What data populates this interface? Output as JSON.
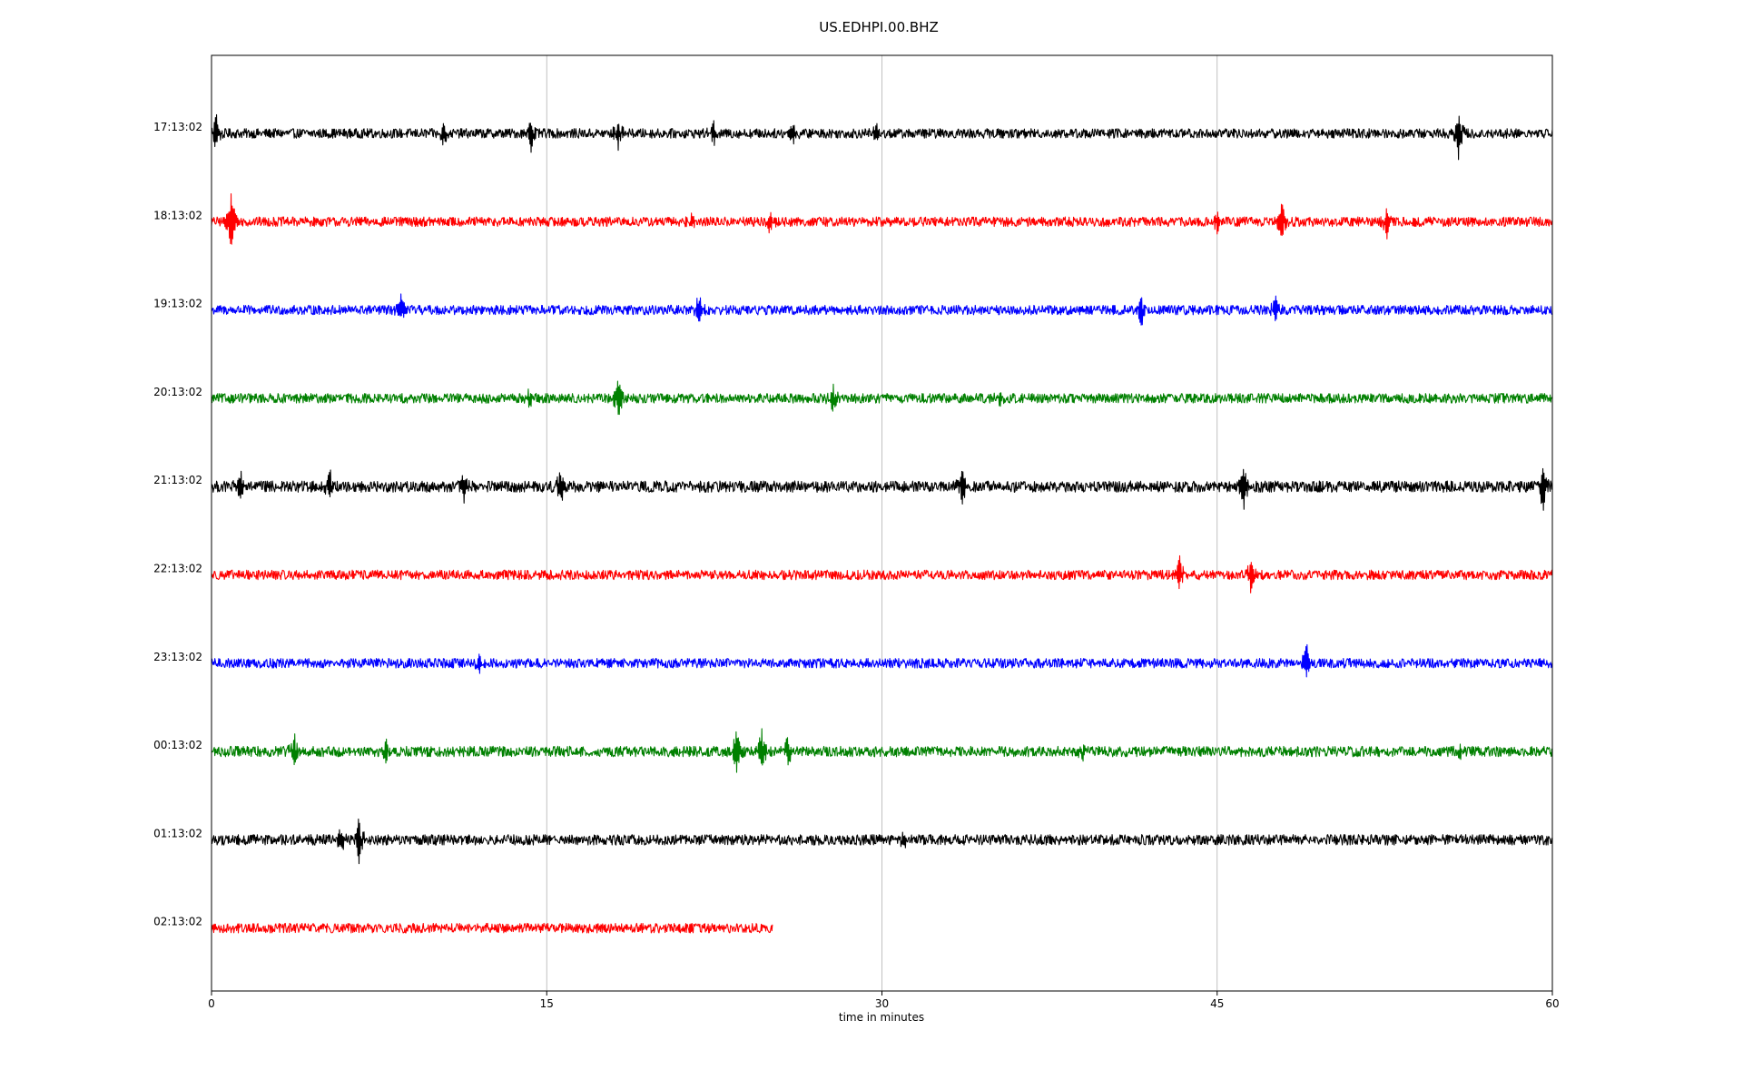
{
  "chart_data": {
    "type": "line",
    "title": "US.EDHPI.00.BHZ",
    "xlabel": "time in minutes",
    "ylabel": "",
    "xlim": [
      0,
      60
    ],
    "xticks": [
      0,
      15,
      30,
      45,
      60
    ],
    "xtick_labels": [
      "0",
      "15",
      "30",
      "45",
      "60"
    ],
    "grid": "vertical lines at x ticks",
    "series": [
      {
        "name": "17:13:02",
        "color": "#000000",
        "end_minute": 60,
        "noise": 0.11,
        "events": [
          {
            "t": 0.2,
            "amp": 0.4
          },
          {
            "t": 10.4,
            "amp": 0.25
          },
          {
            "t": 14.3,
            "amp": 0.35
          },
          {
            "t": 18.2,
            "amp": 0.35
          },
          {
            "t": 22.5,
            "amp": 0.3
          },
          {
            "t": 26.0,
            "amp": 0.25
          },
          {
            "t": 29.7,
            "amp": 0.25
          },
          {
            "t": 55.8,
            "amp": 0.55
          }
        ]
      },
      {
        "name": "18:13:02",
        "color": "#ff0000",
        "end_minute": 60,
        "noise": 0.11,
        "events": [
          {
            "t": 0.9,
            "amp": 0.65
          },
          {
            "t": 21.5,
            "amp": 0.2
          },
          {
            "t": 25.0,
            "amp": 0.22
          },
          {
            "t": 45.0,
            "amp": 0.25
          },
          {
            "t": 47.9,
            "amp": 0.4
          },
          {
            "t": 52.6,
            "amp": 0.35
          }
        ]
      },
      {
        "name": "19:13:02",
        "color": "#0000ff",
        "end_minute": 60,
        "noise": 0.11,
        "events": [
          {
            "t": 8.5,
            "amp": 0.3
          },
          {
            "t": 21.8,
            "amp": 0.35
          },
          {
            "t": 41.6,
            "amp": 0.35
          },
          {
            "t": 47.6,
            "amp": 0.4
          }
        ]
      },
      {
        "name": "20:13:02",
        "color": "#008000",
        "end_minute": 60,
        "noise": 0.11,
        "events": [
          {
            "t": 14.2,
            "amp": 0.2
          },
          {
            "t": 18.2,
            "amp": 0.55
          },
          {
            "t": 27.8,
            "amp": 0.35
          },
          {
            "t": 35.3,
            "amp": 0.15
          }
        ]
      },
      {
        "name": "21:13:02",
        "color": "#000000",
        "end_minute": 60,
        "noise": 0.13,
        "events": [
          {
            "t": 1.3,
            "amp": 0.35
          },
          {
            "t": 5.3,
            "amp": 0.45
          },
          {
            "t": 11.3,
            "amp": 0.3
          },
          {
            "t": 15.6,
            "amp": 0.45
          },
          {
            "t": 33.6,
            "amp": 0.45
          },
          {
            "t": 46.2,
            "amp": 0.45
          },
          {
            "t": 59.6,
            "amp": 0.6
          }
        ]
      },
      {
        "name": "22:13:02",
        "color": "#ff0000",
        "end_minute": 60,
        "noise": 0.11,
        "events": [
          {
            "t": 43.3,
            "amp": 0.45
          },
          {
            "t": 46.5,
            "amp": 0.4
          }
        ]
      },
      {
        "name": "23:13:02",
        "color": "#0000ff",
        "end_minute": 60,
        "noise": 0.11,
        "events": [
          {
            "t": 12.0,
            "amp": 0.15
          },
          {
            "t": 49.0,
            "amp": 0.4
          }
        ]
      },
      {
        "name": "00:13:02",
        "color": "#008000",
        "end_minute": 60,
        "noise": 0.12,
        "events": [
          {
            "t": 3.7,
            "amp": 0.35
          },
          {
            "t": 7.8,
            "amp": 0.25
          },
          {
            "t": 23.5,
            "amp": 0.5
          },
          {
            "t": 24.6,
            "amp": 0.5
          },
          {
            "t": 25.8,
            "amp": 0.3
          },
          {
            "t": 39.0,
            "amp": 0.15
          },
          {
            "t": 55.9,
            "amp": 0.2
          }
        ]
      },
      {
        "name": "01:13:02",
        "color": "#000000",
        "end_minute": 60,
        "noise": 0.12,
        "events": [
          {
            "t": 5.8,
            "amp": 0.3
          },
          {
            "t": 6.6,
            "amp": 0.5
          },
          {
            "t": 31.0,
            "amp": 0.2
          }
        ]
      },
      {
        "name": "02:13:02",
        "color": "#ff0000",
        "end_minute": 25.1,
        "noise": 0.11,
        "events": []
      }
    ]
  }
}
